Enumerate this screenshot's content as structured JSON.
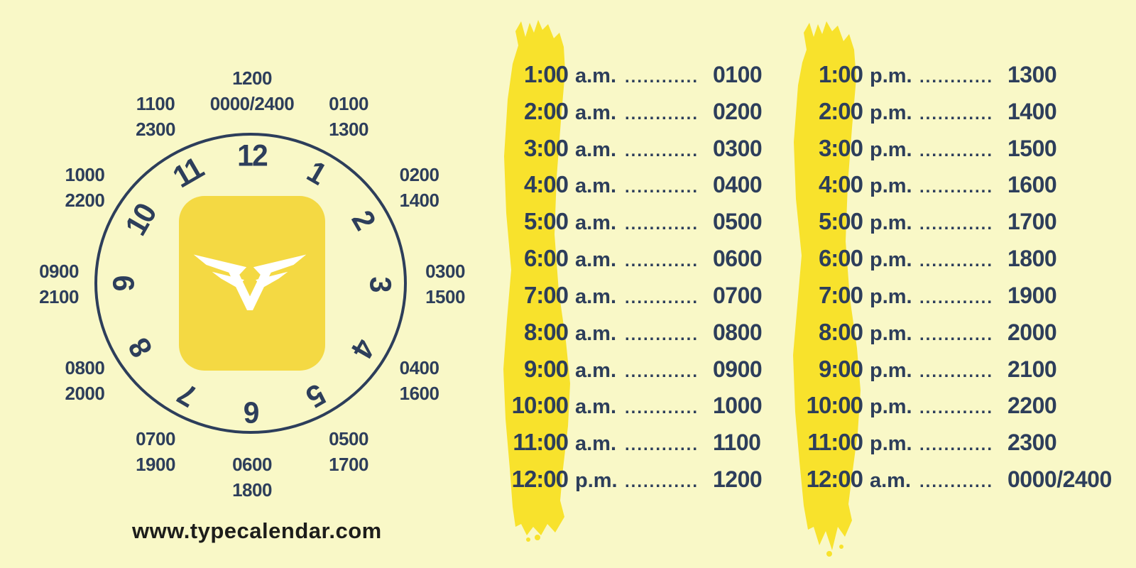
{
  "colors": {
    "background": "#F9F8C7",
    "navy": "#2D3E5B",
    "brush_yellow": "#F8E22C",
    "logo_yellow": "#F4D943",
    "footer_black": "#1D1D1B",
    "white": "#FFFFFF"
  },
  "clock": {
    "numerals": [
      "12",
      "1",
      "2",
      "3",
      "4",
      "5",
      "6",
      "7",
      "8",
      "9",
      "10",
      "11"
    ],
    "outer_labels": [
      {
        "hour": 12,
        "lines": [
          "1200",
          "0000/2400"
        ]
      },
      {
        "hour": 1,
        "lines": [
          "0100",
          "1300"
        ]
      },
      {
        "hour": 2,
        "lines": [
          "0200",
          "1400"
        ]
      },
      {
        "hour": 3,
        "lines": [
          "0300",
          "1500"
        ]
      },
      {
        "hour": 4,
        "lines": [
          "0400",
          "1600"
        ]
      },
      {
        "hour": 5,
        "lines": [
          "0500",
          "1700"
        ]
      },
      {
        "hour": 6,
        "lines": [
          "0600",
          "1800"
        ]
      },
      {
        "hour": 7,
        "lines": [
          "0700",
          "1900"
        ]
      },
      {
        "hour": 8,
        "lines": [
          "0800",
          "2000"
        ]
      },
      {
        "hour": 9,
        "lines": [
          "0900",
          "2100"
        ]
      },
      {
        "hour": 10,
        "lines": [
          "1000",
          "2200"
        ]
      },
      {
        "hour": 11,
        "lines": [
          "1100",
          "2300"
        ]
      }
    ],
    "logo_icon": "winged-v-icon"
  },
  "conversion_columns": [
    {
      "name": "am-to-military",
      "rows": [
        {
          "time": "1:00",
          "period": "a.m.",
          "dots": "............",
          "military": "0100"
        },
        {
          "time": "2:00",
          "period": "a.m.",
          "dots": "............",
          "military": "0200"
        },
        {
          "time": "3:00",
          "period": "a.m.",
          "dots": "............",
          "military": "0300"
        },
        {
          "time": "4:00",
          "period": "a.m.",
          "dots": "............",
          "military": "0400"
        },
        {
          "time": "5:00",
          "period": "a.m.",
          "dots": "............",
          "military": "0500"
        },
        {
          "time": "6:00",
          "period": "a.m.",
          "dots": "............",
          "military": "0600"
        },
        {
          "time": "7:00",
          "period": "a.m.",
          "dots": "............",
          "military": "0700"
        },
        {
          "time": "8:00",
          "period": "a.m.",
          "dots": "............",
          "military": "0800"
        },
        {
          "time": "9:00",
          "period": "a.m.",
          "dots": "............",
          "military": "0900"
        },
        {
          "time": "10:00",
          "period": "a.m.",
          "dots": "............",
          "military": "1000"
        },
        {
          "time": "11:00",
          "period": "a.m.",
          "dots": "............",
          "military": "1100"
        },
        {
          "time": "12:00",
          "period": "p.m.",
          "dots": "............",
          "military": "1200"
        }
      ]
    },
    {
      "name": "pm-to-military",
      "rows": [
        {
          "time": "1:00",
          "period": "p.m.",
          "dots": "............",
          "military": "1300"
        },
        {
          "time": "2:00",
          "period": "p.m.",
          "dots": "............",
          "military": "1400"
        },
        {
          "time": "3:00",
          "period": "p.m.",
          "dots": "............",
          "military": "1500"
        },
        {
          "time": "4:00",
          "period": "p.m.",
          "dots": "............",
          "military": "1600"
        },
        {
          "time": "5:00",
          "period": "p.m.",
          "dots": "............",
          "military": "1700"
        },
        {
          "time": "6:00",
          "period": "p.m.",
          "dots": "............",
          "military": "1800"
        },
        {
          "time": "7:00",
          "period": "p.m.",
          "dots": "............",
          "military": "1900"
        },
        {
          "time": "8:00",
          "period": "p.m.",
          "dots": "............",
          "military": "2000"
        },
        {
          "time": "9:00",
          "period": "p.m.",
          "dots": "............",
          "military": "2100"
        },
        {
          "time": "10:00",
          "period": "p.m.",
          "dots": "............",
          "military": "2200"
        },
        {
          "time": "11:00",
          "period": "p.m.",
          "dots": "............",
          "military": "2300"
        },
        {
          "time": "12:00",
          "period": "a.m.",
          "dots": "............",
          "military": "0000/2400"
        }
      ]
    }
  ],
  "footer": {
    "website": "www.typecalendar.com"
  }
}
